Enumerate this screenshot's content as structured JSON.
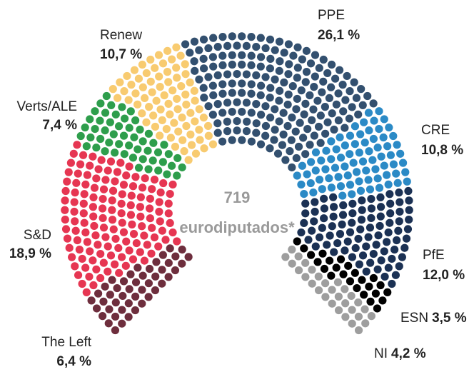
{
  "chart_data": {
    "type": "parliament",
    "total_seats": 719,
    "total_label": "eurodiputados*",
    "parties": [
      {
        "name": "The Left",
        "value": 6.4,
        "value_label": "6,4 %",
        "color": "#6e2e3d"
      },
      {
        "name": "S&D",
        "value": 18.9,
        "value_label": "18,9 %",
        "color": "#e63652"
      },
      {
        "name": "Verts/ALE",
        "value": 7.4,
        "value_label": "7,4 %",
        "color": "#2e9e4c"
      },
      {
        "name": "Renew",
        "value": 10.7,
        "value_label": "10,7 %",
        "color": "#f8cb70"
      },
      {
        "name": "PPE",
        "value": 26.1,
        "value_label": "26,1 %",
        "color": "#33506f"
      },
      {
        "name": "CRE",
        "value": 10.8,
        "value_label": "10,8 %",
        "color": "#2b8ac6"
      },
      {
        "name": "PfE",
        "value": 12.0,
        "value_label": "12,0 %",
        "color": "#1b3154"
      },
      {
        "name": "ESN",
        "value": 3.5,
        "value_label": "3,5 %",
        "color": "#000000"
      },
      {
        "name": "NI",
        "value": 4.2,
        "value_label": "4,2 %",
        "color": "#9e9e9e"
      }
    ]
  }
}
